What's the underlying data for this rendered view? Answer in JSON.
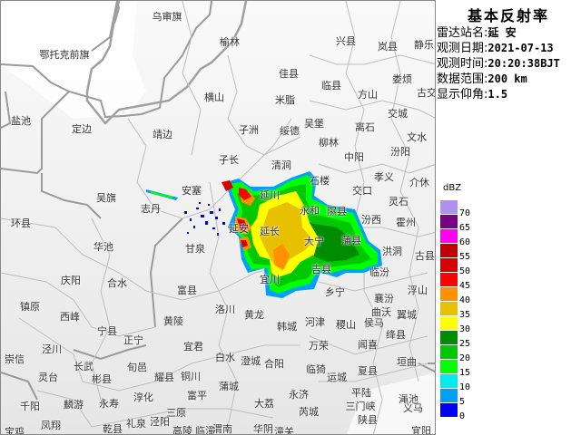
{
  "panel": {
    "title": "基本反射率",
    "rows": [
      {
        "label": "雷达站名:",
        "value": "延 安"
      },
      {
        "label": "观测日期:",
        "value": "2021-07-13"
      },
      {
        "label": "观测时间:",
        "value": "20:20:38BJT"
      },
      {
        "label": "数据范围:",
        "value": "200 km"
      },
      {
        "label": "显示仰角:",
        "value": "1.5"
      }
    ]
  },
  "legend": {
    "unit": "dBZ",
    "items": [
      {
        "value": "70",
        "color": "#ad90f0"
      },
      {
        "value": "65",
        "color": "#780084"
      },
      {
        "value": "60",
        "color": "#ff00f0"
      },
      {
        "value": "55",
        "color": "#c00000"
      },
      {
        "value": "50",
        "color": "#d60000"
      },
      {
        "value": "45",
        "color": "#ff0000"
      },
      {
        "value": "40",
        "color": "#ff9000"
      },
      {
        "value": "35",
        "color": "#e7c000"
      },
      {
        "value": "30",
        "color": "#ffff00"
      },
      {
        "value": "25",
        "color": "#008c00"
      },
      {
        "value": "20",
        "color": "#00c800"
      },
      {
        "value": "15",
        "color": "#00ff00"
      },
      {
        "value": "10",
        "color": "#00ecec"
      },
      {
        "value": "5",
        "color": "#00a0f6"
      },
      {
        "value": "0",
        "color": "#0000f6"
      }
    ]
  },
  "map": {
    "places": [
      "乌审旗",
      "鄂托克前旗",
      "盐池",
      "定边",
      "靖边",
      "吴旗",
      "安塞",
      "志丹",
      "横山",
      "榆林",
      "兴县",
      "岚县",
      "静乐",
      "佳县",
      "临县",
      "娄烦",
      "方山",
      "古交",
      "米脂",
      "吴堡",
      "子洲",
      "绥德",
      "离石",
      "交城",
      "文水",
      "柳林",
      "子长",
      "清涧",
      "中阳",
      "汾阳",
      "孝义",
      "介休",
      "石楼",
      "交口",
      "灵石",
      "隰县",
      "延川",
      "永和",
      "延安",
      "延长",
      "大宁",
      "蒲县",
      "吉县",
      "宜川",
      "汾西",
      "甘泉",
      "霍州",
      "洪洞",
      "古县",
      "临汾",
      "乡宁",
      "襄汾",
      "浮山",
      "曲沃",
      "翼城",
      "侯马",
      "绛县",
      "闻喜",
      "垣曲",
      "夏县",
      "平陆",
      "渑池",
      "义马",
      "三门峡",
      "陕县",
      "宜阳",
      "环县",
      "华池",
      "庆阳",
      "合水",
      "富县",
      "镇原",
      "西峰",
      "黄陵",
      "宁县",
      "正宁",
      "宜君",
      "泾川",
      "崇信",
      "长武",
      "旬邑",
      "耀县",
      "铜川",
      "灵台",
      "彬县",
      "千阳",
      "麟游",
      "永寿",
      "淳化",
      "富平",
      "三原",
      "凤翔",
      "乾县",
      "礼泉",
      "泾阳",
      "高陵",
      "临潼",
      "宝鸡",
      "洛川",
      "黄龙",
      "韩城",
      "河津",
      "稷山",
      "万荣",
      "白水",
      "澄城",
      "合阳",
      "临猗",
      "运城",
      "蒲城",
      "永济",
      "大荔",
      "芮城",
      "渭南",
      "华阴",
      "潼关"
    ]
  }
}
